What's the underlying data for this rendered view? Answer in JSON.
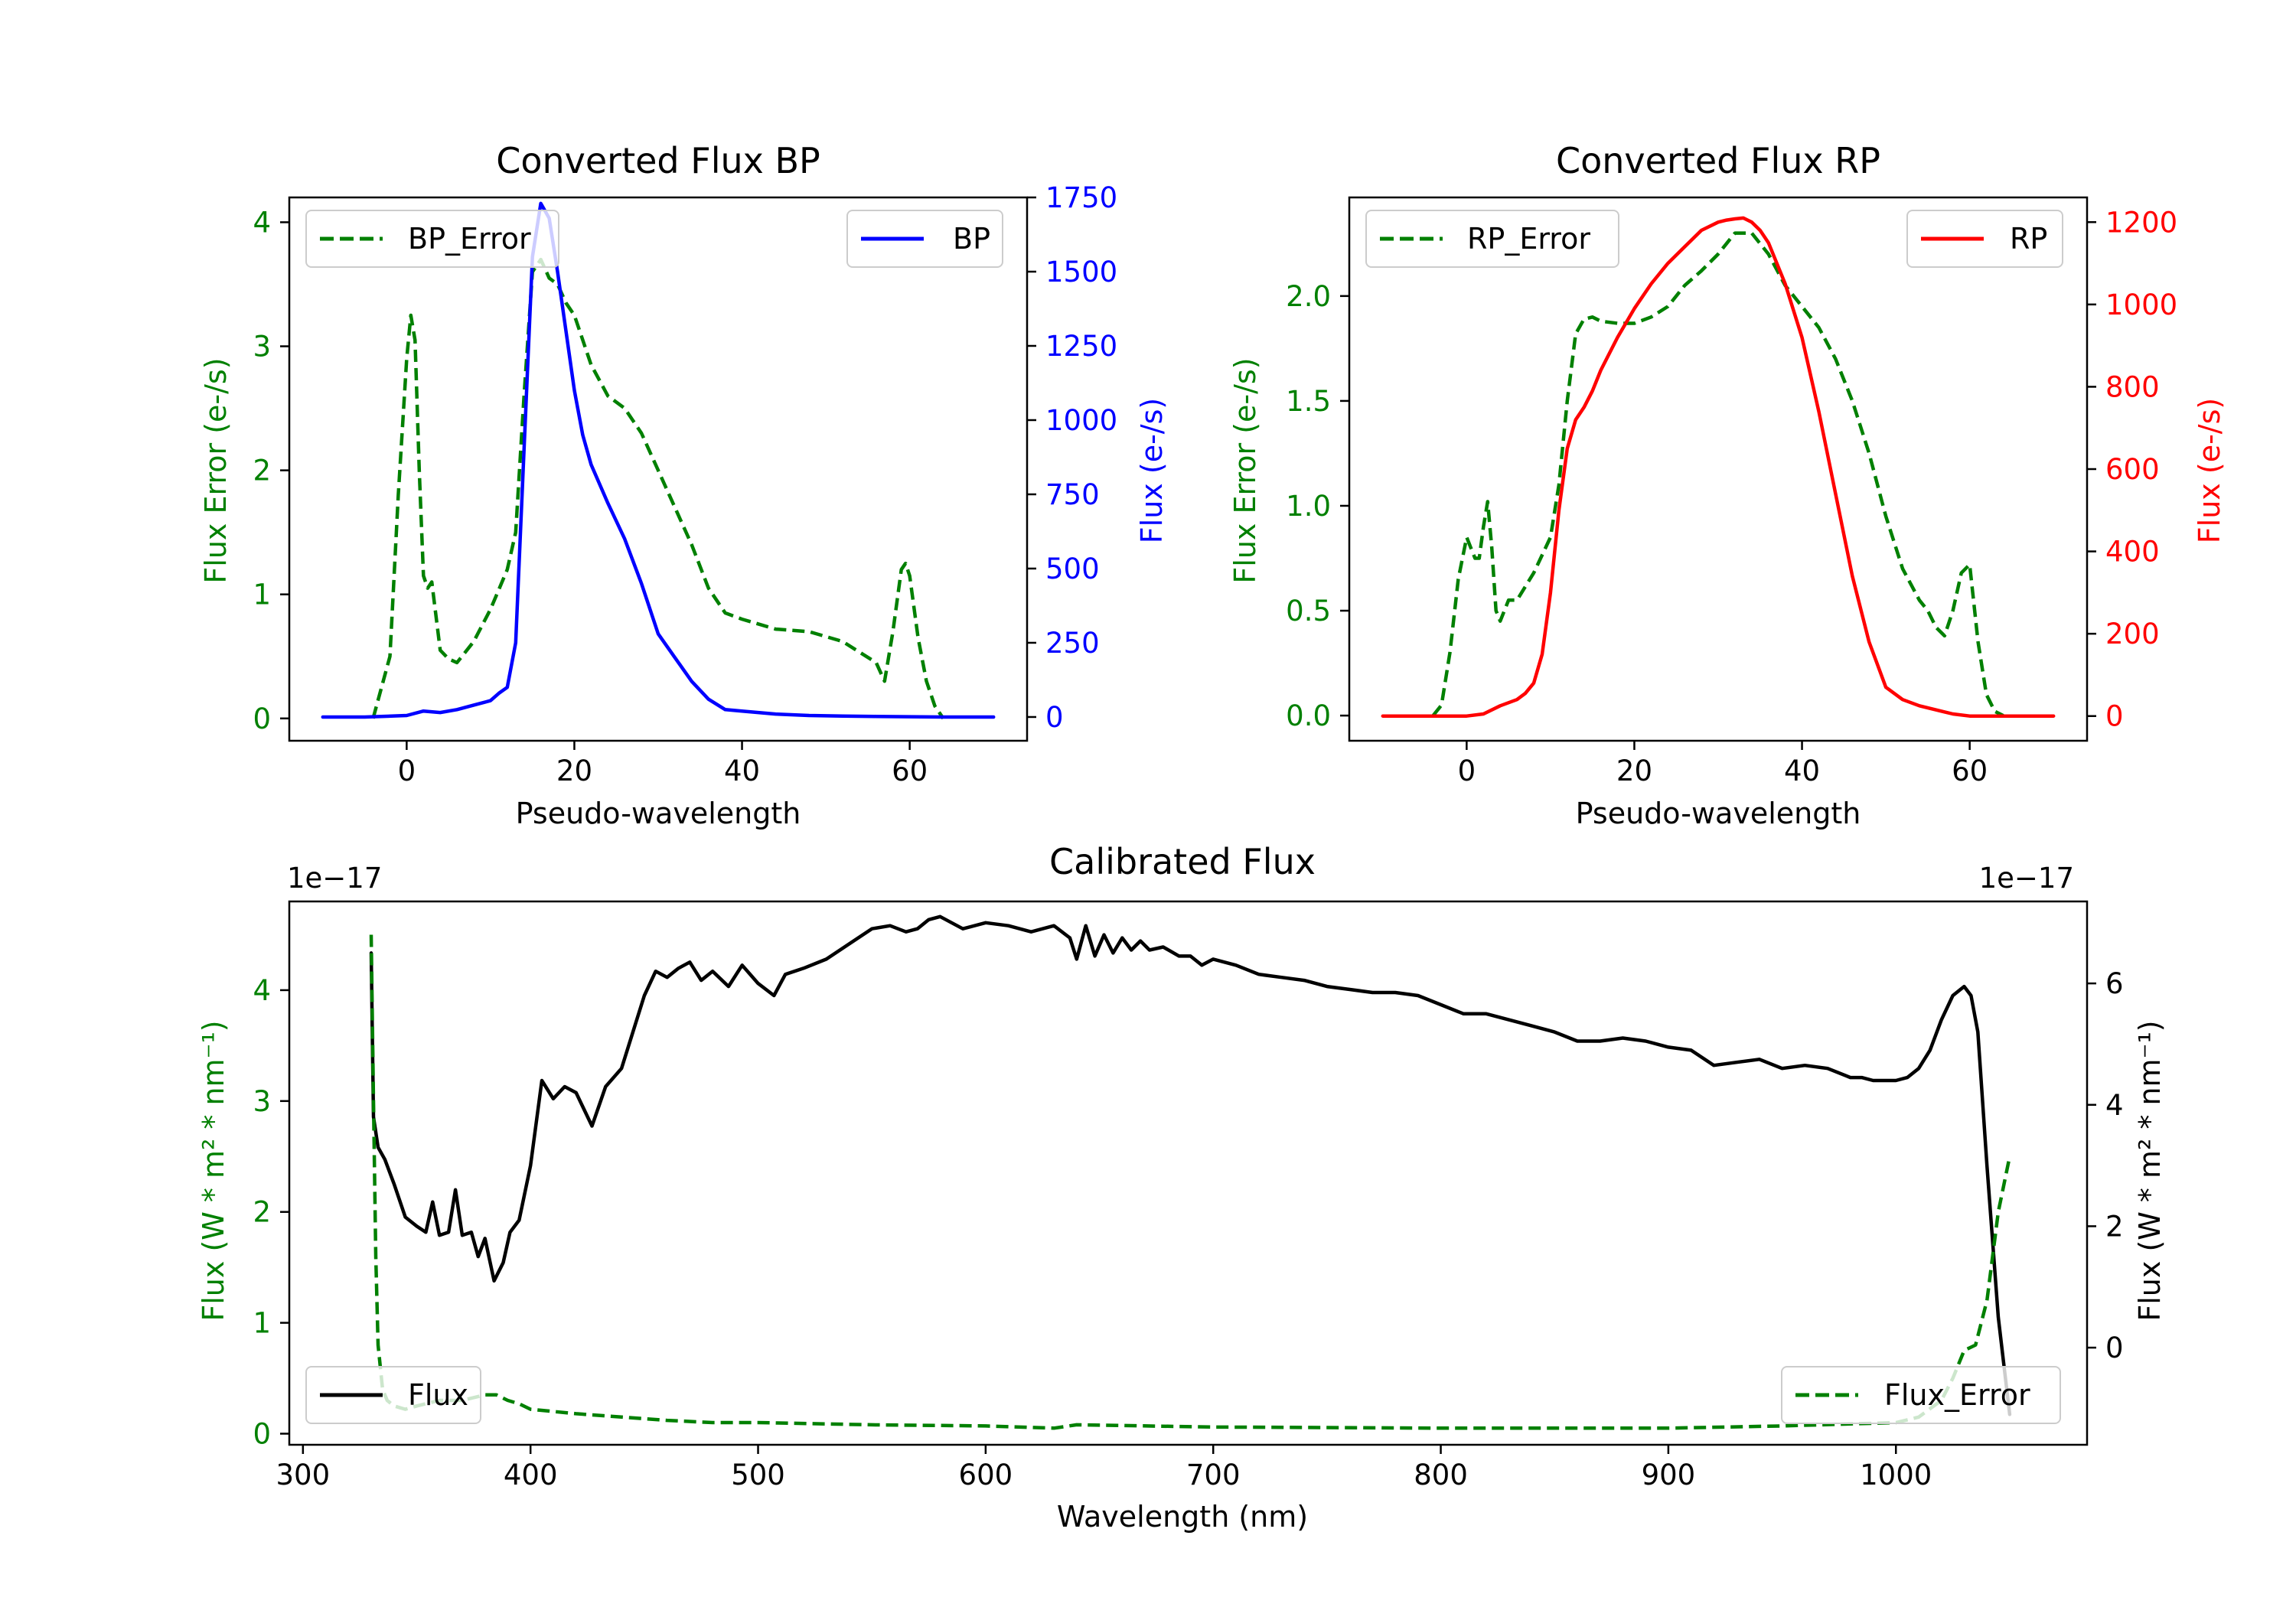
{
  "colors": {
    "axis": "#000000",
    "bp": "#0000ff",
    "rp": "#ff0000",
    "error": "#008000",
    "flux": "#000000",
    "background": "#ffffff"
  },
  "chart_data": [
    {
      "type": "line",
      "title": "Converted Flux BP",
      "xlabel": "Pseudo-wavelength",
      "ylabel_left": "Flux Error (e-/s)",
      "ylabel_right": "Flux (e-/s)",
      "xlim": [
        -14,
        74
      ],
      "ylim_left": [
        -0.18,
        4.2
      ],
      "ylim_right": [
        -80,
        1750
      ],
      "xticks": [
        0,
        20,
        40,
        60
      ],
      "yticks_left": [
        0,
        1,
        2,
        3,
        4
      ],
      "yticks_right": [
        0,
        250,
        500,
        750,
        1000,
        1250,
        1500,
        1750
      ],
      "legend_left": "BP_Error",
      "legend_right": "BP",
      "series": [
        {
          "name": "BP_Error",
          "axis": "left",
          "style": "dashed",
          "color": "#008000",
          "x": [
            -4,
            -2,
            -1,
            0,
            0.5,
            1,
            1.5,
            2,
            2.5,
            3,
            4,
            5,
            6,
            8,
            10,
            12,
            13,
            14,
            15,
            16,
            17,
            18,
            19,
            20,
            22,
            24,
            26,
            28,
            30,
            32,
            34,
            36,
            38,
            40,
            44,
            48,
            52,
            56,
            57,
            58,
            59,
            59.5,
            60,
            61,
            62,
            63,
            64
          ],
          "y": [
            0,
            0.5,
            1.8,
            2.9,
            3.25,
            3.05,
            2.0,
            1.15,
            1.05,
            1.1,
            0.55,
            0.48,
            0.45,
            0.62,
            0.88,
            1.2,
            1.5,
            2.6,
            3.6,
            3.7,
            3.55,
            3.5,
            3.35,
            3.25,
            2.85,
            2.6,
            2.5,
            2.3,
            2.0,
            1.7,
            1.4,
            1.05,
            0.85,
            0.8,
            0.72,
            0.7,
            0.62,
            0.45,
            0.3,
            0.7,
            1.2,
            1.25,
            1.15,
            0.65,
            0.3,
            0.1,
            0
          ]
        },
        {
          "name": "BP",
          "axis": "right",
          "style": "solid",
          "color": "#0000ff",
          "x": [
            -10,
            -5,
            0,
            2,
            4,
            6,
            8,
            10,
            11,
            12,
            13,
            14,
            15,
            16,
            17,
            18,
            19,
            20,
            21,
            22,
            24,
            26,
            28,
            30,
            32,
            34,
            36,
            38,
            40,
            44,
            48,
            52,
            56,
            60,
            64,
            70
          ],
          "y": [
            0,
            0,
            5,
            20,
            15,
            25,
            40,
            55,
            80,
            100,
            250,
            900,
            1550,
            1730,
            1680,
            1500,
            1300,
            1100,
            950,
            850,
            720,
            600,
            450,
            280,
            200,
            120,
            60,
            25,
            20,
            10,
            5,
            3,
            2,
            1,
            0,
            0
          ]
        }
      ]
    },
    {
      "type": "line",
      "title": "Converted Flux RP",
      "xlabel": "Pseudo-wavelength",
      "ylabel_left": "Flux Error (e-/s)",
      "ylabel_right": "Flux (e-/s)",
      "xlim": [
        -14,
        74
      ],
      "ylim_left": [
        -0.12,
        2.47
      ],
      "ylim_right": [
        -60,
        1260
      ],
      "xticks": [
        0,
        20,
        40,
        60
      ],
      "yticks_left": [
        "0.0",
        "0.5",
        "1.0",
        "1.5",
        "2.0"
      ],
      "yticks_right": [
        0,
        200,
        400,
        600,
        800,
        1000,
        1200
      ],
      "legend_left": "RP_Error",
      "legend_right": "RP",
      "series": [
        {
          "name": "RP_Error",
          "axis": "left",
          "style": "dashed",
          "color": "#008000",
          "x": [
            -4,
            -3,
            -2,
            -1,
            0,
            0.5,
            1,
            1.5,
            2,
            2.5,
            3,
            3.5,
            4,
            5,
            6,
            8,
            10,
            11,
            12,
            13,
            14,
            15,
            16,
            18,
            20,
            22,
            24,
            26,
            28,
            30,
            32,
            34,
            36,
            38,
            40,
            42,
            44,
            46,
            48,
            50,
            52,
            54,
            55,
            56,
            57,
            58,
            59,
            60,
            61,
            62,
            63,
            64
          ],
          "y": [
            0,
            0.05,
            0.3,
            0.65,
            0.85,
            0.8,
            0.75,
            0.75,
            0.9,
            1.02,
            0.8,
            0.5,
            0.45,
            0.55,
            0.55,
            0.68,
            0.85,
            1.1,
            1.5,
            1.82,
            1.89,
            1.9,
            1.88,
            1.87,
            1.87,
            1.9,
            1.95,
            2.05,
            2.12,
            2.2,
            2.3,
            2.3,
            2.2,
            2.05,
            1.95,
            1.85,
            1.7,
            1.5,
            1.25,
            0.95,
            0.7,
            0.55,
            0.5,
            0.42,
            0.38,
            0.5,
            0.68,
            0.72,
            0.35,
            0.1,
            0.02,
            0
          ]
        },
        {
          "name": "RP",
          "axis": "right",
          "style": "solid",
          "color": "#ff0000",
          "x": [
            -10,
            -2,
            0,
            2,
            4,
            6,
            7,
            8,
            9,
            10,
            11,
            12,
            13,
            14,
            15,
            16,
            18,
            20,
            22,
            24,
            26,
            28,
            30,
            31,
            32,
            33,
            34,
            35,
            36,
            38,
            40,
            42,
            44,
            46,
            48,
            50,
            52,
            54,
            56,
            58,
            60,
            64,
            70
          ],
          "y": [
            0,
            0,
            0,
            5,
            25,
            40,
            55,
            80,
            150,
            300,
            500,
            650,
            720,
            750,
            790,
            840,
            920,
            990,
            1050,
            1100,
            1140,
            1180,
            1200,
            1205,
            1208,
            1210,
            1200,
            1180,
            1150,
            1050,
            920,
            740,
            540,
            340,
            180,
            70,
            40,
            25,
            15,
            5,
            0,
            0,
            0
          ]
        }
      ]
    },
    {
      "type": "line",
      "title": "Calibrated Flux",
      "xlabel": "Wavelength (nm)",
      "ylabel_left": "Flux (W * m² * nm⁻¹)",
      "ylabel_right": "Flux (W * m² * nm⁻¹)",
      "offset_left": "1e−17",
      "offset_right": "1e−17",
      "xlim": [
        294,
        1084
      ],
      "ylim_left": [
        -0.1,
        4.8
      ],
      "ylim_right": [
        -1.6,
        7.35
      ],
      "xticks": [
        300,
        400,
        500,
        600,
        700,
        800,
        900,
        1000
      ],
      "yticks_left": [
        0,
        1,
        2,
        3,
        4
      ],
      "yticks_right": [
        0,
        2,
        4,
        6
      ],
      "legend_left": "Flux",
      "legend_right": "Flux_Error",
      "series": [
        {
          "name": "Flux",
          "axis": "right",
          "style": "solid",
          "color": "#000000",
          "x": [
            330,
            331,
            333,
            336,
            340,
            345,
            350,
            354,
            357,
            360,
            364,
            367,
            370,
            374,
            377,
            380,
            384,
            388,
            391,
            395,
            400,
            405,
            410,
            415,
            420,
            427,
            433,
            440,
            445,
            450,
            455,
            460,
            465,
            470,
            475,
            480,
            487,
            493,
            500,
            507,
            512,
            520,
            530,
            540,
            550,
            558,
            565,
            570,
            575,
            580,
            590,
            600,
            610,
            620,
            630,
            637,
            640,
            644,
            648,
            652,
            656,
            660,
            664,
            668,
            672,
            678,
            685,
            690,
            695,
            700,
            710,
            720,
            730,
            740,
            750,
            760,
            770,
            780,
            790,
            800,
            810,
            820,
            830,
            840,
            850,
            860,
            870,
            880,
            890,
            900,
            910,
            920,
            930,
            940,
            950,
            960,
            970,
            980,
            985,
            990,
            995,
            1000,
            1005,
            1010,
            1015,
            1020,
            1025,
            1030,
            1033,
            1036,
            1040,
            1045,
            1050
          ],
          "y": [
            6.5,
            3.8,
            3.3,
            3.1,
            2.7,
            2.15,
            2.0,
            1.9,
            2.4,
            1.85,
            1.9,
            2.6,
            1.85,
            1.9,
            1.5,
            1.8,
            1.1,
            1.4,
            1.9,
            2.1,
            3.0,
            4.4,
            4.1,
            4.3,
            4.2,
            3.65,
            4.3,
            4.6,
            5.2,
            5.8,
            6.2,
            6.1,
            6.25,
            6.35,
            6.05,
            6.2,
            5.95,
            6.3,
            6.0,
            5.8,
            6.15,
            6.25,
            6.4,
            6.65,
            6.9,
            6.95,
            6.85,
            6.9,
            7.05,
            7.1,
            6.9,
            7.0,
            6.95,
            6.85,
            6.95,
            6.75,
            6.4,
            6.95,
            6.45,
            6.8,
            6.5,
            6.75,
            6.55,
            6.7,
            6.55,
            6.6,
            6.45,
            6.45,
            6.3,
            6.4,
            6.3,
            6.15,
            6.1,
            6.05,
            5.95,
            5.9,
            5.85,
            5.85,
            5.8,
            5.65,
            5.5,
            5.5,
            5.4,
            5.3,
            5.2,
            5.05,
            5.05,
            5.1,
            5.05,
            4.95,
            4.9,
            4.65,
            4.7,
            4.75,
            4.6,
            4.65,
            4.6,
            4.45,
            4.45,
            4.4,
            4.4,
            4.4,
            4.45,
            4.6,
            4.9,
            5.4,
            5.8,
            5.95,
            5.8,
            5.2,
            3.0,
            0.5,
            -1.1
          ]
        },
        {
          "name": "Flux_Error",
          "axis": "left",
          "style": "dashed",
          "color": "#008000",
          "x": [
            330,
            331,
            332,
            333,
            335,
            337,
            340,
            345,
            350,
            360,
            370,
            380,
            385,
            390,
            395,
            400,
            410,
            420,
            440,
            460,
            480,
            500,
            550,
            600,
            630,
            640,
            700,
            800,
            900,
            950,
            1000,
            1010,
            1020,
            1025,
            1030,
            1035,
            1040,
            1045,
            1050
          ],
          "y": [
            4.5,
            3.0,
            1.6,
            0.8,
            0.4,
            0.3,
            0.25,
            0.22,
            0.25,
            0.3,
            0.3,
            0.35,
            0.35,
            0.3,
            0.27,
            0.22,
            0.2,
            0.18,
            0.15,
            0.12,
            0.1,
            0.1,
            0.08,
            0.07,
            0.05,
            0.08,
            0.06,
            0.05,
            0.05,
            0.07,
            0.1,
            0.15,
            0.3,
            0.5,
            0.75,
            0.8,
            1.2,
            2.0,
            2.5
          ]
        }
      ]
    }
  ]
}
